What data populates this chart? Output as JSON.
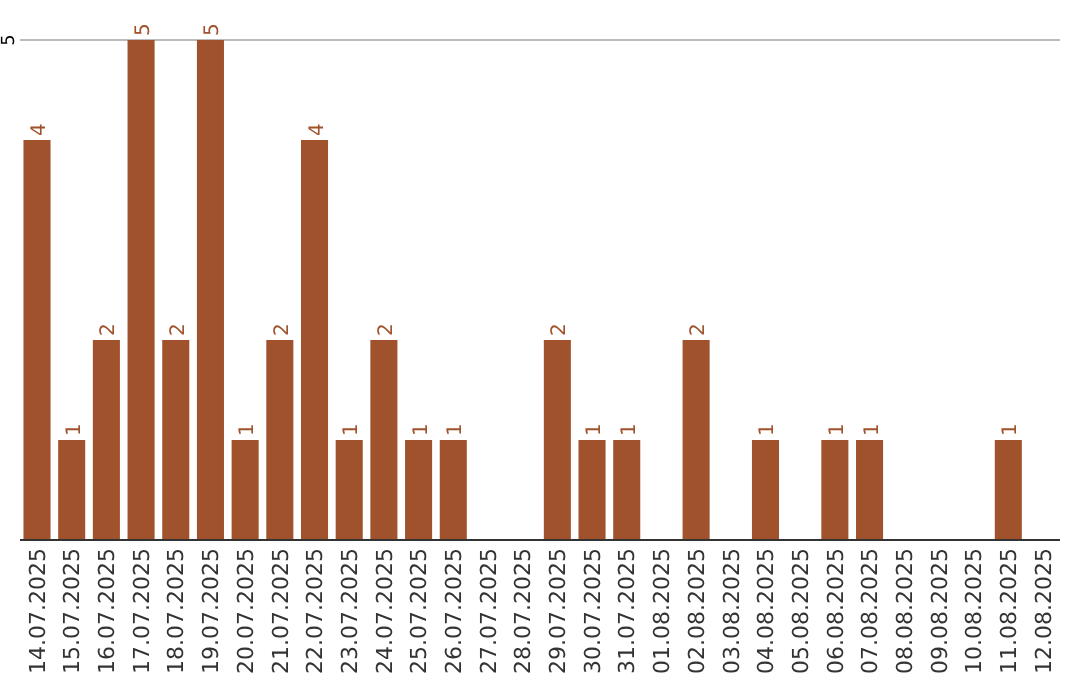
{
  "chart_data": {
    "type": "bar",
    "categories": [
      "14.07.2025",
      "15.07.2025",
      "16.07.2025",
      "17.07.2025",
      "18.07.2025",
      "19.07.2025",
      "20.07.2025",
      "21.07.2025",
      "22.07.2025",
      "23.07.2025",
      "24.07.2025",
      "25.07.2025",
      "26.07.2025",
      "27.07.2025",
      "28.07.2025",
      "29.07.2025",
      "30.07.2025",
      "31.07.2025",
      "01.08.2025",
      "02.08.2025",
      "03.08.2025",
      "04.08.2025",
      "05.08.2025",
      "06.08.2025",
      "07.08.2025",
      "08.08.2025",
      "09.08.2025",
      "10.08.2025",
      "11.08.2025",
      "12.08.2025"
    ],
    "values": [
      4,
      1,
      2,
      5,
      2,
      5,
      1,
      2,
      4,
      1,
      2,
      1,
      1,
      0,
      0,
      2,
      1,
      1,
      0,
      2,
      0,
      1,
      0,
      1,
      1,
      0,
      0,
      0,
      1,
      0
    ],
    "value_labels": [
      "4",
      "1",
      "2",
      "5",
      "2",
      "5",
      "1",
      "2",
      "4",
      "1",
      "2",
      "1",
      "1",
      null,
      null,
      "2",
      "1",
      "1",
      null,
      "2",
      null,
      "1",
      null,
      "1",
      "1",
      null,
      null,
      null,
      "1",
      null
    ],
    "color": "#a0522d",
    "ylim": [
      0,
      5
    ],
    "yticks": [
      5
    ]
  }
}
